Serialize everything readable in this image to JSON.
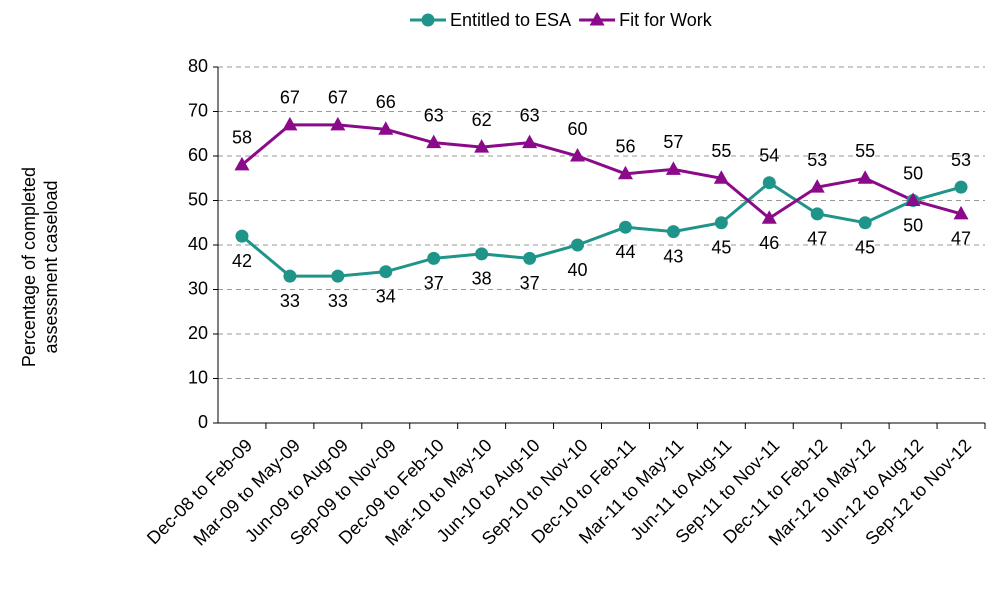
{
  "chart_data": {
    "type": "line",
    "y_label": "Percentage of completed assessment caseload",
    "categories": [
      "Dec-08 to Feb-09",
      "Mar-09 to May-09",
      "Jun-09 to Aug-09",
      "Sep-09 to Nov-09",
      "Dec-09 to Feb-10",
      "Mar-10 to May-10",
      "Jun-10 to Aug-10",
      "Sep-10 to Nov-10",
      "Dec-10 to Feb-11",
      "Mar-11 to May-11",
      "Jun-11 to Aug-11",
      "Sep-11 to Nov-11",
      "Dec-11 to Feb-12",
      "Mar-12 to May-12",
      "Jun-12 to Aug-12",
      "Sep-12 to Nov-12"
    ],
    "series": [
      {
        "name": "Entitled to ESA",
        "color": "#1f958a",
        "marker": "circle",
        "values": [
          42,
          33,
          33,
          34,
          37,
          38,
          37,
          40,
          44,
          43,
          45,
          54,
          47,
          45,
          50,
          53
        ]
      },
      {
        "name": "Fit for Work",
        "color": "#8a0a8a",
        "marker": "triangle",
        "values": [
          58,
          67,
          67,
          66,
          63,
          62,
          63,
          60,
          56,
          57,
          55,
          46,
          53,
          55,
          50,
          47
        ]
      }
    ],
    "ylim": [
      0,
      80
    ],
    "yticks": [
      0,
      10,
      20,
      30,
      40,
      50,
      60,
      70,
      80
    ],
    "grid": true,
    "legend": "top"
  }
}
